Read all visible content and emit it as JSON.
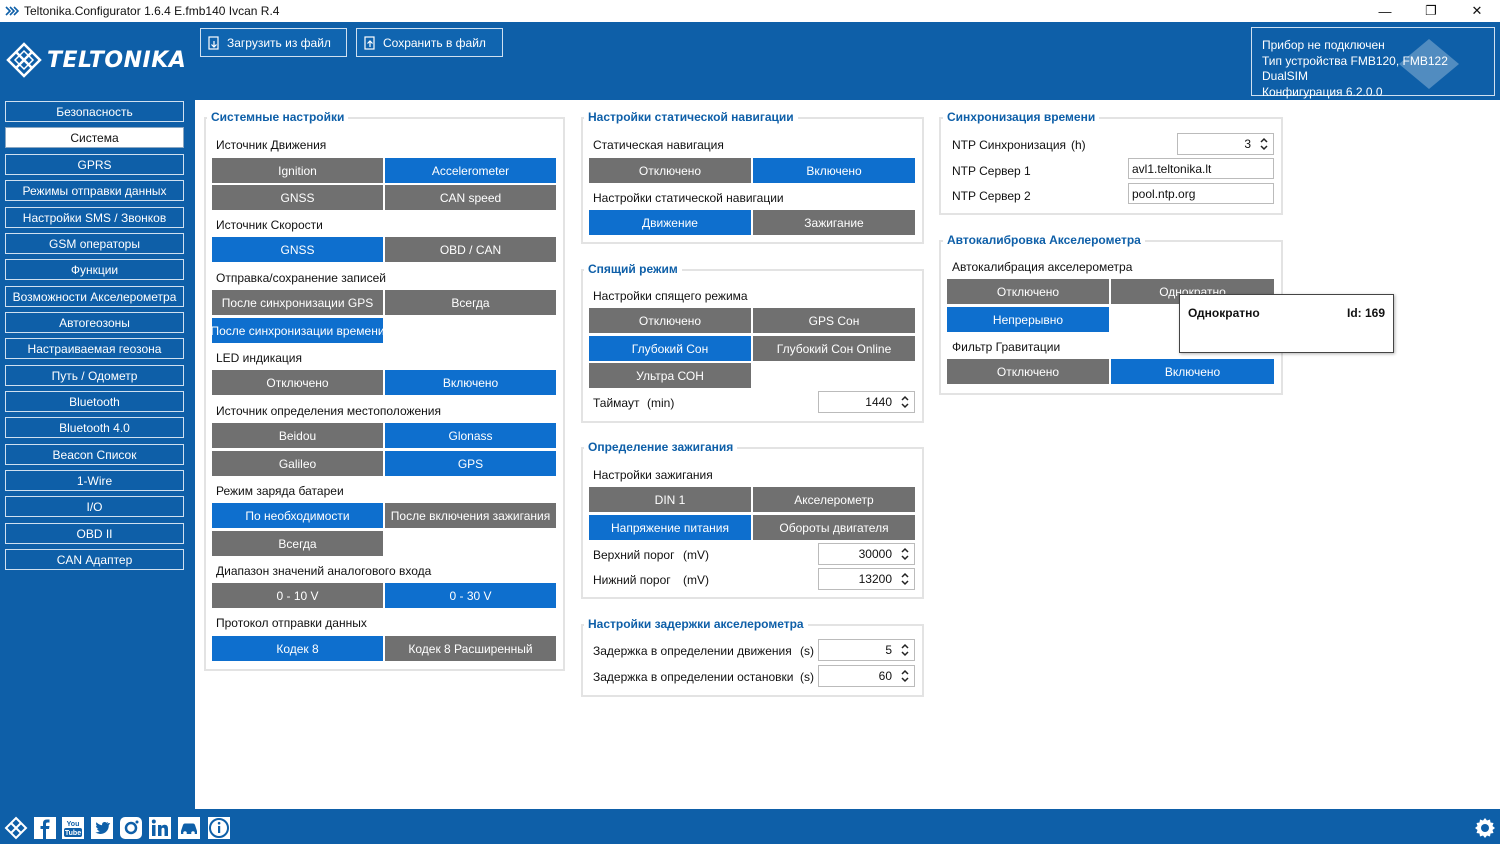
{
  "window": {
    "title": "Teltonika.Configurator 1.6.4 E.fmb140 Ivcan R.4",
    "controls": [
      "—",
      "❐",
      "✕"
    ]
  },
  "header": {
    "logo_text": "TELTONIKA",
    "load_button": "Загрузить из файл",
    "save_button": "Сохранить в файл",
    "device_info": {
      "line1": "Прибор не подключен",
      "line2": "Тип устройства FMB120, FMB122 DualSIM",
      "line3": "Конфигурация 6.2.0.0"
    }
  },
  "sidebar": {
    "active": "Система",
    "items": [
      "Безопасность",
      "Система",
      "GPRS",
      "Режимы отправки данных",
      "Настройки SMS / Звонков",
      "GSM операторы",
      "Функции",
      "Возможности Акселерометра",
      "Автогеозоны",
      "Настраиваемая геозона",
      "Путь / Одометр",
      "Bluetooth",
      "Bluetooth 4.0",
      "Beacon Список",
      "1-Wire",
      "I/O",
      "OBD II",
      "CAN Адаптер"
    ]
  },
  "system_settings": {
    "title": "Системные настройки",
    "movement_source": {
      "label": "Источник Движения",
      "options": [
        "Ignition",
        "Accelerometer",
        "GNSS",
        "CAN speed"
      ],
      "selected": [
        "Accelerometer"
      ]
    },
    "speed_source": {
      "label": "Источник Скорости",
      "options": [
        "GNSS",
        "OBD / CAN"
      ],
      "selected": [
        "GNSS"
      ]
    },
    "records": {
      "label": "Отправка/сохранение записей",
      "options": [
        "После синхронизации GPS",
        "Всегда",
        "После синхронизации времени"
      ],
      "selected": [
        "После синхронизации времени"
      ]
    },
    "led": {
      "label": "LED индикация",
      "options": [
        "Отключено",
        "Включено"
      ],
      "selected": [
        "Включено"
      ]
    },
    "location_source": {
      "label": "Источник определения местоположения",
      "options": [
        "Beidou",
        "Glonass",
        "Galileo",
        "GPS"
      ],
      "selected": [
        "Glonass",
        "GPS"
      ]
    },
    "battery": {
      "label": "Режим заряда батареи",
      "options": [
        "По необходимости",
        "После включения зажигания",
        "Всегда"
      ],
      "selected": [
        "По необходимости"
      ]
    },
    "analog_range": {
      "label": "Диапазон значений аналогового входа",
      "options": [
        "0 - 10 V",
        "0 - 30 V"
      ],
      "selected": [
        "0 - 30 V"
      ]
    },
    "protocol": {
      "label": "Протокол отправки данных",
      "options": [
        "Кодек 8",
        "Кодек 8 Расширенный"
      ],
      "selected": [
        "Кодек 8"
      ]
    }
  },
  "static_nav": {
    "title": "Настройки статической навигации",
    "mode": {
      "label": "Статическая навигация",
      "options": [
        "Отключено",
        "Включено"
      ],
      "selected": [
        "Включено"
      ]
    },
    "settings": {
      "label": "Настройки статической навигации",
      "options": [
        "Движение",
        "Зажигание"
      ],
      "selected": [
        "Движение"
      ]
    }
  },
  "sleep": {
    "title": "Спящий режим",
    "mode": {
      "label": "Настройки спящего режима",
      "options": [
        "Отключено",
        "GPS Сон",
        "Глубокий Сон",
        "Глубокий Сон Online",
        "Ультра СОН"
      ],
      "selected": [
        "Глубокий Сон"
      ]
    },
    "timeout": {
      "label": "Таймаут",
      "unit": "(min)",
      "value": "1440"
    }
  },
  "ignition": {
    "title": "Определение зажигания",
    "mode": {
      "label": "Настройки зажигания",
      "options": [
        "DIN 1",
        "Акселерометр",
        "Напряжение питания",
        "Обороты двигателя"
      ],
      "selected": [
        "Напряжение питания"
      ]
    },
    "upper": {
      "label": "Верхний порог",
      "unit": "(mV)",
      "value": "30000"
    },
    "lower": {
      "label": "Нижний порог",
      "unit": "(mV)",
      "value": "13200"
    }
  },
  "accel_delay": {
    "title": "Настройки задержки акселерометра",
    "move": {
      "label": "Задержка в определении движения",
      "unit": "(s)",
      "value": "5"
    },
    "stop": {
      "label": "Задержка в определении остановки",
      "unit": "(s)",
      "value": "60"
    }
  },
  "time_sync": {
    "title": "Синхронизация времени",
    "ntp_sync": {
      "label": "NTP Синхронизация",
      "unit": "(h)",
      "value": "3"
    },
    "ntp1": {
      "label": "NTP Сервер 1",
      "value": "avl1.teltonika.lt"
    },
    "ntp2": {
      "label": "NTP Сервер 2",
      "value": "pool.ntp.org"
    }
  },
  "autocal": {
    "title": "Автокалибровка Акселерометра",
    "mode": {
      "label": "Автокалибрация акселерометра",
      "options": [
        "Отключено",
        "Однократно",
        "Непрерывно"
      ],
      "selected": [
        "Непрерывно"
      ]
    },
    "gravity": {
      "label": "Фильтр Гравитации",
      "options": [
        "Отключено",
        "Включено"
      ],
      "selected": [
        "Включено"
      ]
    }
  },
  "tooltip": {
    "text": "Однократно",
    "id": "Id: 169"
  },
  "footer": {
    "icons": [
      "teltonika-icon",
      "facebook-icon",
      "youtube-icon",
      "twitter-icon",
      "instagram-icon",
      "linkedin-icon",
      "car-icon",
      "info-icon",
      "settings-icon"
    ]
  },
  "colors": {
    "brand_blue": "#0e5fa8",
    "selected": "#0e6fce",
    "unselected": "#707070"
  }
}
